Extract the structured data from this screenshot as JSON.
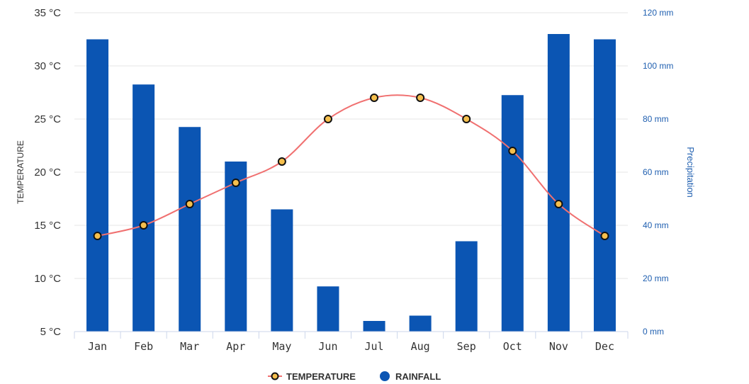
{
  "chart_data": {
    "type": "bar-line-combo",
    "categories": [
      "Jan",
      "Feb",
      "Mar",
      "Apr",
      "May",
      "Jun",
      "Jul",
      "Aug",
      "Sep",
      "Oct",
      "Nov",
      "Dec"
    ],
    "series": [
      {
        "name": "TEMPERATURE",
        "type": "line",
        "axis": "left",
        "values": [
          14,
          15,
          17,
          19,
          21,
          25,
          27,
          27,
          25,
          22,
          17,
          14
        ]
      },
      {
        "name": "RAINFALL",
        "type": "bar",
        "axis": "right",
        "values": [
          110,
          93,
          77,
          64,
          46,
          17,
          4,
          6,
          34,
          89,
          112,
          110
        ]
      }
    ],
    "left_axis": {
      "title": "TEMPERATURE",
      "min": 5,
      "max": 35,
      "ticks": [
        5,
        10,
        15,
        20,
        25,
        30,
        35
      ],
      "tick_labels": [
        "5 °C",
        "10 °C",
        "15 °C",
        "20 °C",
        "25 °C",
        "30 °C",
        "35 °C"
      ]
    },
    "right_axis": {
      "title": "Precipitation",
      "min": 0,
      "max": 120,
      "ticks": [
        0,
        20,
        40,
        60,
        80,
        100,
        120
      ],
      "tick_labels": [
        "0 mm",
        "20 mm",
        "40 mm",
        "60 mm",
        "80 mm",
        "100 mm",
        "120 mm"
      ]
    },
    "legend": {
      "placement": "bottom-center",
      "items": [
        "TEMPERATURE",
        "RAINFALL"
      ]
    },
    "colors": {
      "bars": "#0b55b3",
      "line": "#f07070",
      "marker_fill": "#f5bf4d",
      "marker_stroke": "#111111",
      "right_axis_text": "#1f5fb0"
    },
    "grid": true
  }
}
